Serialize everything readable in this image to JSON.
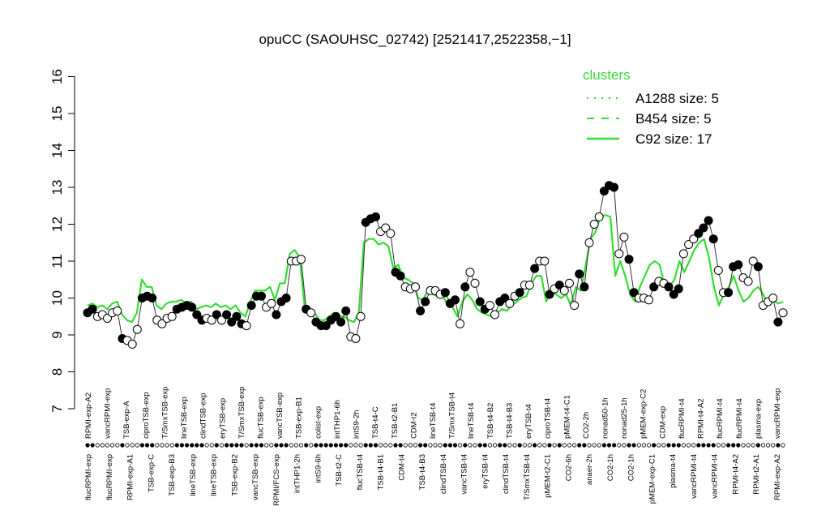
{
  "chart_data": {
    "type": "line",
    "title": "opuCC (SAOUHSC_02742) [2521417,2522358,−1]",
    "xlabel": "",
    "ylabel": "",
    "ylim": [
      7,
      16
    ],
    "yticks": [
      "7",
      "8",
      "9",
      "10",
      "11",
      "12",
      "13",
      "14",
      "15",
      "16"
    ],
    "grid": false,
    "legend": {
      "title": "clusters",
      "placement": "top-right",
      "color": "#33dd33",
      "entries": [
        {
          "label": "A1288 size: 5",
          "style": "dotted"
        },
        {
          "label": "B454 size: 5",
          "style": "dashed"
        },
        {
          "label": "C92 size: 17",
          "style": "solid"
        }
      ]
    },
    "upper_labels": [
      "RPMI-exp-A2",
      "vancRPMI-exp",
      "TSB-exp-A",
      "ciproTSB-exp",
      "T/SmxTSB-exp",
      "lineTSB-exp",
      "clindTSB-exp",
      "eryTSB-exp",
      "T/SmxTSB-exp",
      "flucTSB-exp",
      "vancTSB-exp",
      "TSB-exp-B1",
      "colist-exp",
      "intTHP1-6h",
      "intS9-2h",
      "TSB-t4-C",
      "TSB-t2-B1",
      "CDM-t2",
      "lineTSB-t4",
      "T/SmxTSB-t4",
      "lineTSB-t4",
      "TSB-t4-B2",
      "TSB-t4-B3",
      "eryTSB-t4",
      "ciproTSB-t4",
      "pMEM-t4-C1",
      "CO2-2h",
      "nonad50-1h",
      "nonad25-1h",
      "pMEM-exp-C2",
      "CDM-exp",
      "flucRPMI-t4",
      "RPMI-t4-A2",
      "flucRPMI-t4",
      "flucRPMI-t4",
      "plasma-exp",
      "vancRPMI-exp"
    ],
    "lower_labels": [
      "flucRPMI-exp",
      "flucRPMI-exp",
      "RPMI-exp-A1",
      "TSB-exp-C",
      "TSB-exp-B3",
      "lineTSB-exp",
      "lineTSB-exp",
      "TSB-exp-B2",
      "vancTSB-exp",
      "RPMI/FCS-exp",
      "intTHP1-2h",
      "intS9-6h",
      "TSB-t2-C",
      "flucTSB-t4",
      "TSB-t4-B1",
      "CDM-t4",
      "TSB-t4-B3",
      "clindTSB-t4",
      "vancTSB-t4",
      "eryTSB-t4",
      "clindTSB-t4",
      "T/SmxTSB-t4",
      "pMEM-t2-C1",
      "CO2-6h",
      "anaer-2h",
      "CO2-1h",
      "CO2-1h",
      "pMEM-exp-C1",
      "plasma-t4",
      "vancRPMI-t4",
      "vancRPMI-t4",
      "RPMI-t4-A2",
      "RPMI-t2-A1",
      "RPMI-exp-A2"
    ],
    "series": [
      {
        "role": "gene",
        "style": "points",
        "values": [
          9.6,
          9.7,
          9.5,
          9.55,
          9.45,
          9.6,
          9.65,
          8.9,
          8.85,
          8.75,
          9.15,
          10.0,
          10.05,
          10.0,
          9.4,
          9.3,
          9.45,
          9.5,
          9.7,
          9.75,
          9.8,
          9.75,
          9.55,
          9.4,
          9.45,
          9.4,
          9.55,
          9.4,
          9.55,
          9.35,
          9.5,
          9.3,
          9.25,
          9.8,
          10.05,
          10.05,
          9.75,
          9.85,
          9.55,
          9.9,
          10.0,
          11.0,
          11.0,
          11.05,
          9.7,
          9.6,
          9.35,
          9.25,
          9.25,
          9.4,
          9.5,
          9.35,
          9.65,
          8.95,
          8.9,
          9.5,
          12.05,
          12.15,
          12.2,
          11.8,
          11.9,
          11.75,
          10.7,
          10.6,
          10.3,
          10.25,
          10.3,
          9.65,
          9.9,
          10.2,
          10.2,
          10.1,
          10.15,
          9.85,
          9.95,
          9.3,
          10.3,
          10.7,
          10.4,
          9.9,
          9.7,
          9.8,
          9.55,
          9.9,
          10.0,
          9.85,
          10.05,
          10.15,
          10.35,
          10.35,
          10.8,
          11.0,
          11.0,
          10.1,
          10.25,
          10.35,
          10.2,
          10.4,
          9.8,
          10.65,
          10.3,
          11.5,
          12.0,
          12.2,
          12.9,
          13.05,
          13.0,
          11.2,
          11.65,
          11.05,
          10.15,
          10.0,
          10.0,
          9.95,
          10.3,
          10.45,
          10.4,
          10.3,
          10.1,
          10.25,
          11.2,
          11.45,
          11.6,
          11.75,
          11.9,
          12.1,
          11.6,
          10.75,
          10.15,
          10.15,
          10.85,
          10.9,
          10.55,
          10.45,
          11.0,
          10.85,
          9.8,
          9.9,
          10.0,
          9.35,
          9.6
        ],
        "filled": [
          1,
          1,
          0,
          0,
          0,
          0,
          0,
          1,
          0,
          0,
          0,
          1,
          1,
          1,
          0,
          0,
          0,
          0,
          1,
          1,
          1,
          1,
          1,
          1,
          0,
          0,
          1,
          0,
          1,
          1,
          1,
          1,
          0,
          1,
          1,
          1,
          0,
          0,
          1,
          1,
          1,
          0,
          0,
          0,
          1,
          0,
          1,
          1,
          1,
          1,
          1,
          1,
          1,
          0,
          0,
          0,
          1,
          1,
          1,
          0,
          0,
          0,
          1,
          1,
          0,
          0,
          0,
          1,
          1,
          0,
          0,
          0,
          1,
          1,
          1,
          0,
          1,
          0,
          0,
          1,
          1,
          0,
          0,
          1,
          1,
          0,
          0,
          1,
          0,
          0,
          1,
          0,
          0,
          1,
          0,
          1,
          0,
          0,
          0,
          1,
          1,
          0,
          0,
          0,
          1,
          1,
          1,
          0,
          0,
          1,
          1,
          0,
          0,
          0,
          1,
          0,
          0,
          1,
          1,
          1,
          0,
          0,
          0,
          1,
          1,
          1,
          1,
          0,
          0,
          1,
          1,
          1,
          0,
          0,
          0,
          1,
          0,
          0,
          0,
          1,
          0
        ]
      },
      {
        "name": "A1288 size: 5",
        "style": "dotted",
        "color": "#33dd33",
        "values": []
      },
      {
        "name": "B454 size: 5",
        "style": "dashed",
        "color": "#33dd33",
        "values": []
      },
      {
        "name": "C92 size: 17",
        "style": "solid",
        "color": "#33dd33",
        "values": [
          9.8,
          9.85,
          9.75,
          9.8,
          9.7,
          9.85,
          9.9,
          9.55,
          9.4,
          9.35,
          9.6,
          10.5,
          10.3,
          10.3,
          9.8,
          9.7,
          9.85,
          9.9,
          9.9,
          9.95,
          9.85,
          9.9,
          9.7,
          9.75,
          9.8,
          9.75,
          9.85,
          9.75,
          9.8,
          9.7,
          9.8,
          9.6,
          9.5,
          9.9,
          10.2,
          10.2,
          10.2,
          10.3,
          9.95,
          10.4,
          10.4,
          11.2,
          11.3,
          11.1,
          9.8,
          9.7,
          9.6,
          9.4,
          9.4,
          9.5,
          9.6,
          9.5,
          9.5,
          9.4,
          9.35,
          9.6,
          11.5,
          11.6,
          11.6,
          11.45,
          11.5,
          11.4,
          10.8,
          10.9,
          10.55,
          10.5,
          10.4,
          10.0,
          9.95,
          10.2,
          10.1,
          10.05,
          10.1,
          9.8,
          9.75,
          9.5,
          9.9,
          10.1,
          9.95,
          9.7,
          9.6,
          9.55,
          9.5,
          9.6,
          9.7,
          9.65,
          9.8,
          9.9,
          10.0,
          10.05,
          10.4,
          10.6,
          10.6,
          9.9,
          10.2,
          10.1,
          10.0,
          10.1,
          9.8,
          10.3,
          10.2,
          10.9,
          11.6,
          11.8,
          12.2,
          12.25,
          12.2,
          10.6,
          11.0,
          10.6,
          10.1,
          9.9,
          10.3,
          10.6,
          10.9,
          11.0,
          10.9,
          10.3,
          10.3,
          10.5,
          11.0,
          10.7,
          11.0,
          11.3,
          11.5,
          11.6,
          11.1,
          10.3,
          9.8,
          10.1,
          10.3,
          10.6,
          10.2,
          9.9,
          10.0,
          10.2,
          10.3,
          10.1,
          9.8,
          9.95,
          9.85,
          9.9
        ]
      }
    ]
  }
}
